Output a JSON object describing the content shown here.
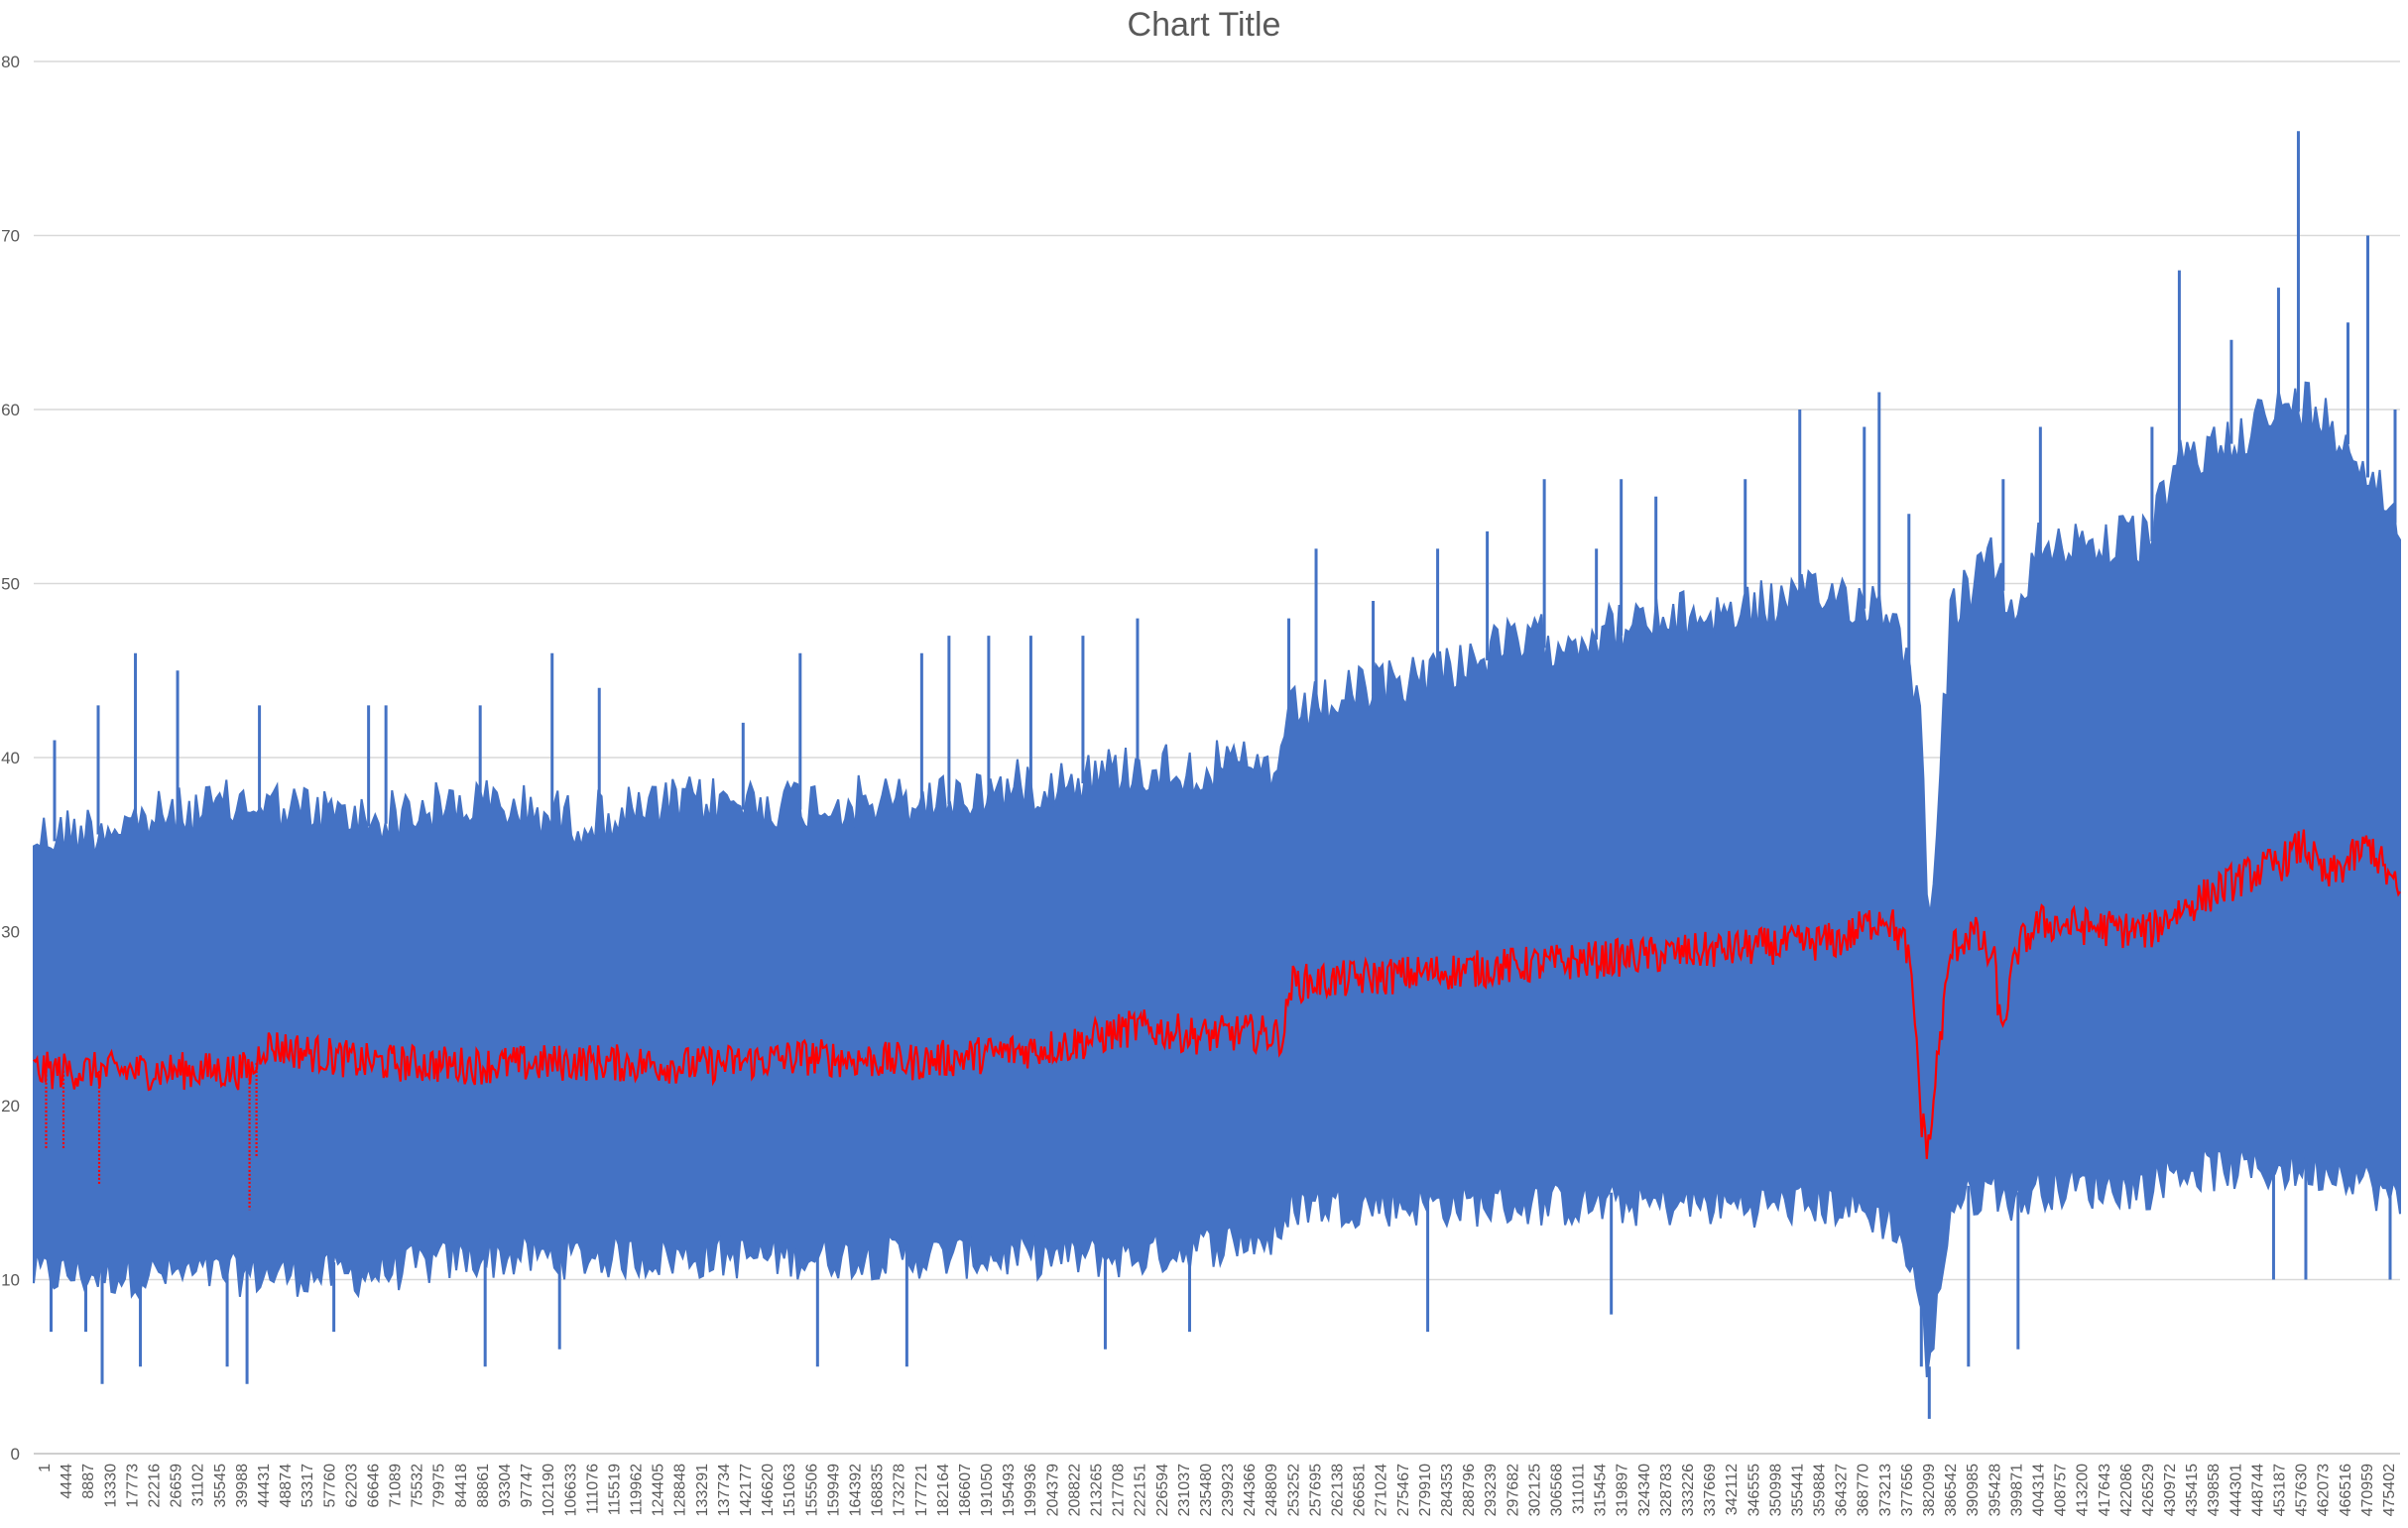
{
  "chart_data": {
    "type": "line",
    "title": "Chart Title",
    "xlabel": "",
    "ylabel": "",
    "ylim": [
      0,
      80
    ],
    "yticks": [
      0,
      10,
      20,
      30,
      40,
      50,
      60,
      70,
      80
    ],
    "grid": true,
    "legend": "none",
    "x_range": [
      1,
      477000
    ],
    "x_tick_labels": [
      "1",
      "4444",
      "8887",
      "13330",
      "17773",
      "22216",
      "26659",
      "31102",
      "35545",
      "39988",
      "44431",
      "48874",
      "53317",
      "57760",
      "62203",
      "66646",
      "71089",
      "75532",
      "79975",
      "84418",
      "88861",
      "93304",
      "97747",
      "102190",
      "106633",
      "111076",
      "115519",
      "119962",
      "124405",
      "128848",
      "133291",
      "137734",
      "142177",
      "146620",
      "151063",
      "155506",
      "159949",
      "164392",
      "168835",
      "173278",
      "177721",
      "182164",
      "186607",
      "191050",
      "195493",
      "199936",
      "204379",
      "208822",
      "213265",
      "217708",
      "222151",
      "226594",
      "231037",
      "235480",
      "239923",
      "244366",
      "248809",
      "253252",
      "257695",
      "262138",
      "266581",
      "271024",
      "275467",
      "279910",
      "284353",
      "288796",
      "293239",
      "297682",
      "302125",
      "306568",
      "311011",
      "315454",
      "319897",
      "324340",
      "328783",
      "333226",
      "337669",
      "342112",
      "346555",
      "350998",
      "355441",
      "359884",
      "364327",
      "368770",
      "373213",
      "377656",
      "382099",
      "386542",
      "390985",
      "395428",
      "399871",
      "404314",
      "408757",
      "413200",
      "417643",
      "422086",
      "426529",
      "430972",
      "435415",
      "439858",
      "444301",
      "448744",
      "453187",
      "457630",
      "462073",
      "466516",
      "470959",
      "475402"
    ],
    "series": [
      {
        "color": "#4472c4",
        "envelope_x": [
          1,
          22216,
          44431,
          66646,
          88861,
          111076,
          133291,
          155506,
          177721,
          199936,
          222151,
          244366,
          252000,
          253252,
          275467,
          297682,
          319897,
          342112,
          364327,
          375000,
          380000,
          382099,
          384000,
          386542,
          395428,
          399871,
          404314,
          426529,
          431000,
          448744,
          457630,
          466516,
          477000
        ],
        "max": [
          37,
          38,
          39,
          38,
          39,
          38,
          39,
          39,
          39,
          40,
          41,
          41,
          41,
          44,
          46,
          48,
          49,
          50,
          51,
          50,
          45,
          32,
          40,
          50,
          53,
          49,
          54,
          54,
          58,
          61,
          62,
          60,
          55
        ],
        "min": [
          9,
          9,
          9,
          9,
          10,
          10,
          10,
          10,
          10,
          10,
          10,
          11,
          11,
          13,
          13,
          13,
          13,
          13,
          13,
          12,
          8,
          3,
          8,
          13,
          14,
          13,
          14,
          14,
          15,
          15,
          15,
          15,
          13
        ],
        "spikes_high": [
          [
            4200,
            41
          ],
          [
            13000,
            43
          ],
          [
            20500,
            46
          ],
          [
            29000,
            45
          ],
          [
            45500,
            43
          ],
          [
            67500,
            43
          ],
          [
            71000,
            43
          ],
          [
            90000,
            43
          ],
          [
            104500,
            46
          ],
          [
            114000,
            44
          ],
          [
            143000,
            42
          ],
          [
            154500,
            46
          ],
          [
            179000,
            46
          ],
          [
            184500,
            47
          ],
          [
            192500,
            47
          ],
          [
            201000,
            47
          ],
          [
            211500,
            47
          ],
          [
            222500,
            48
          ],
          [
            253000,
            48
          ],
          [
            258500,
            52
          ],
          [
            270000,
            49
          ],
          [
            283000,
            52
          ],
          [
            293000,
            53
          ],
          [
            304500,
            56
          ],
          [
            315000,
            52
          ],
          [
            320000,
            56
          ],
          [
            327000,
            55
          ],
          [
            345000,
            56
          ],
          [
            356000,
            60
          ],
          [
            369000,
            59
          ],
          [
            372000,
            61
          ],
          [
            378000,
            54
          ],
          [
            397000,
            56
          ],
          [
            404500,
            59
          ],
          [
            427000,
            59
          ],
          [
            432500,
            68
          ],
          [
            443000,
            64
          ],
          [
            452500,
            67
          ],
          [
            456500,
            76
          ],
          [
            466500,
            65
          ],
          [
            470500,
            70
          ],
          [
            476000,
            60
          ]
        ],
        "spikes_low": [
          [
            3500,
            7
          ],
          [
            10500,
            7
          ],
          [
            13800,
            4
          ],
          [
            21500,
            5
          ],
          [
            39000,
            5
          ],
          [
            43000,
            4
          ],
          [
            60500,
            7
          ],
          [
            91000,
            5
          ],
          [
            106000,
            6
          ],
          [
            158000,
            5
          ],
          [
            176000,
            5
          ],
          [
            216000,
            6
          ],
          [
            233000,
            7
          ],
          [
            281000,
            7
          ],
          [
            318000,
            8
          ],
          [
            380500,
            5
          ],
          [
            382099,
            2
          ],
          [
            390000,
            5
          ],
          [
            400000,
            6
          ],
          [
            451500,
            10
          ],
          [
            458000,
            10
          ],
          [
            475000,
            10
          ]
        ]
      },
      {
        "color": "#ff0000",
        "x": [
          1,
          22216,
          44431,
          46000,
          66646,
          88861,
          111076,
          133291,
          155506,
          177721,
          199936,
          208822,
          222151,
          235480,
          244366,
          252000,
          253252,
          275467,
          297682,
          319897,
          342112,
          364327,
          373213,
          377656,
          379500,
          380500,
          382099,
          383500,
          386542,
          390985,
          395428,
          396500,
          399871,
          404314,
          426529,
          431000,
          444301,
          453187,
          457630,
          462073,
          470959,
          477000
        ],
        "values": [
          22,
          22,
          22,
          23.5,
          22.5,
          22.3,
          22.5,
          22.3,
          22.8,
          22.5,
          23.2,
          23.5,
          24.5,
          24,
          24.2,
          24,
          27,
          27.5,
          28,
          28.5,
          29,
          29.5,
          31,
          29,
          24,
          19,
          17.5,
          22,
          29,
          30,
          28,
          24,
          29,
          30.5,
          30,
          31,
          33,
          34,
          35,
          33,
          35,
          32
        ],
        "dips": [
          [
            2500,
            17.5
          ],
          [
            6000,
            17.5
          ],
          [
            13200,
            15.5
          ],
          [
            43500,
            14
          ],
          [
            44900,
            17
          ]
        ]
      }
    ]
  }
}
